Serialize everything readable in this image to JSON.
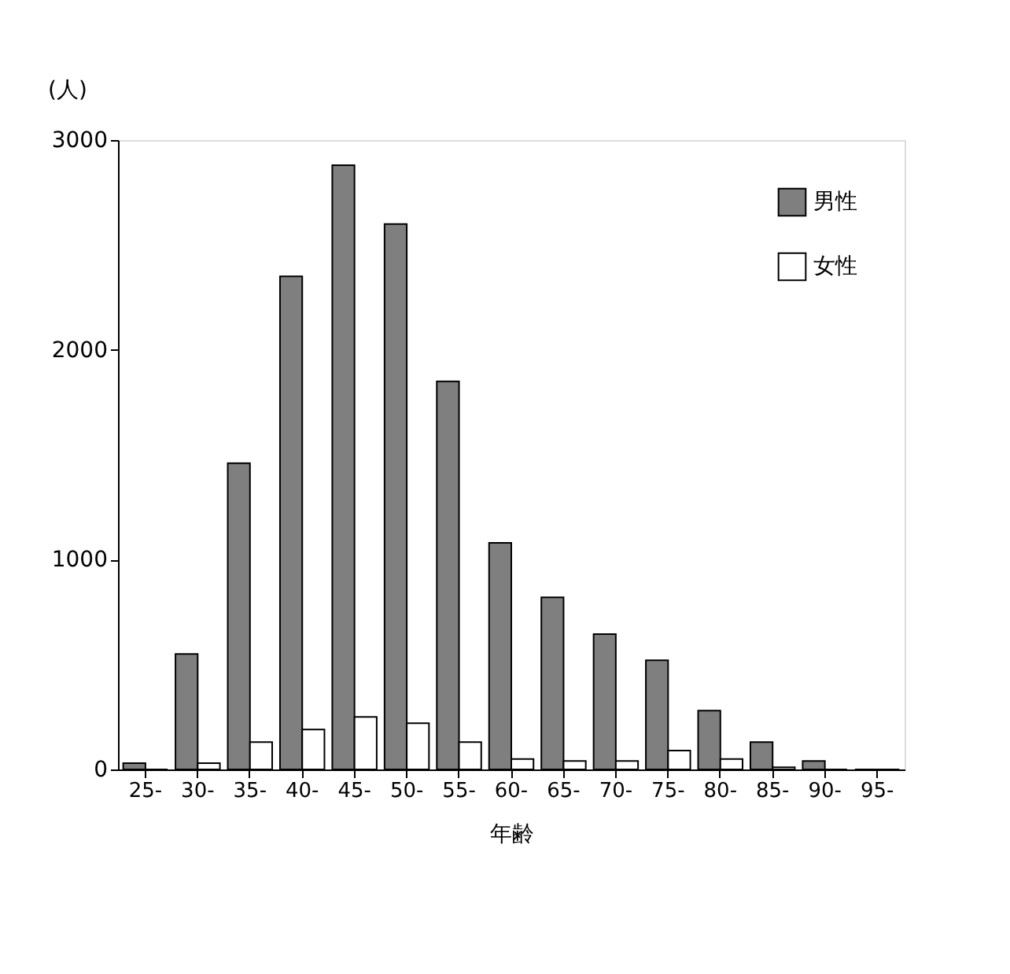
{
  "chart_data": {
    "type": "bar",
    "xlabel": "年齢",
    "ylabel": "(人)",
    "categories": [
      "25-",
      "30-",
      "35-",
      "40-",
      "45-",
      "50-",
      "55-",
      "60-",
      "65-",
      "70-",
      "75-",
      "80-",
      "85-",
      "90-",
      "95-"
    ],
    "series": [
      {
        "name": "男性",
        "color": "#7f7f7f",
        "values": [
          30,
          550,
          1460,
          2350,
          2880,
          2600,
          1850,
          1080,
          820,
          645,
          520,
          280,
          130,
          40,
          0
        ]
      },
      {
        "name": "女性",
        "color": "#ffffff",
        "values": [
          0,
          30,
          130,
          190,
          250,
          220,
          130,
          50,
          40,
          40,
          90,
          50,
          10,
          0,
          0
        ]
      }
    ],
    "ylim": [
      0,
      3000
    ],
    "yticks": [
      0,
      1000,
      2000,
      3000
    ],
    "grid": false,
    "legend": "top right"
  }
}
